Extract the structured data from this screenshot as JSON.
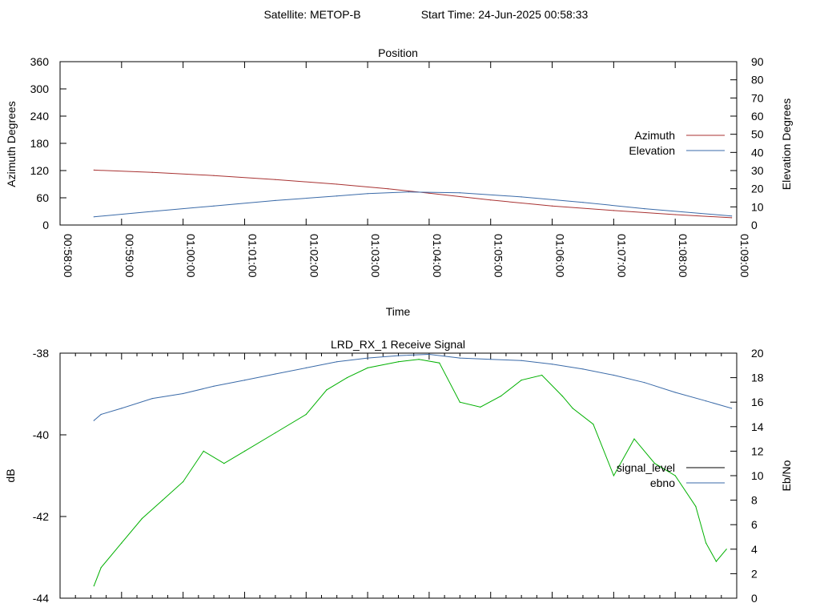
{
  "header": {
    "satellite_label": "Satellite: METOP-B",
    "start_time_label": "Start Time: 24-Jun-2025 00:58:33"
  },
  "chart_data": [
    {
      "type": "line",
      "title": "Position",
      "xlabel": "Time",
      "ylabel": "Azimuth Degrees",
      "y2label": "Elevation Degrees",
      "x_ticks": [
        "00:58:00",
        "00:59:00",
        "01:00:00",
        "01:01:00",
        "01:02:00",
        "01:03:00",
        "01:04:00",
        "01:05:00",
        "01:06:00",
        "01:07:00",
        "01:08:00",
        "01:09:00"
      ],
      "xlim": [
        "00:58:00",
        "01:09:00"
      ],
      "ylim": [
        0,
        360
      ],
      "y_ticks": [
        0,
        60,
        120,
        180,
        240,
        300,
        360
      ],
      "y2lim": [
        0,
        90
      ],
      "y2_ticks": [
        0,
        10,
        20,
        30,
        40,
        50,
        60,
        70,
        80,
        90
      ],
      "legend_position": "right",
      "series": [
        {
          "name": "Azimuth",
          "axis": "left",
          "color": "#a83232",
          "x": [
            "00:58:33",
            "00:59:30",
            "01:00:30",
            "01:01:30",
            "01:02:30",
            "01:03:20",
            "01:04:00",
            "01:05:00",
            "01:06:00",
            "01:07:00",
            "01:08:00",
            "01:08:55"
          ],
          "y": [
            121,
            116,
            109,
            100,
            90,
            80,
            70,
            55,
            42,
            32,
            23,
            16
          ]
        },
        {
          "name": "Elevation",
          "axis": "right",
          "color": "#3a6aa8",
          "x": [
            "00:58:33",
            "00:59:30",
            "01:00:30",
            "01:01:30",
            "01:02:30",
            "01:03:00",
            "01:03:40",
            "01:04:30",
            "01:05:30",
            "01:06:30",
            "01:07:30",
            "01:08:55"
          ],
          "y": [
            4.5,
            7.5,
            10.5,
            13.5,
            16,
            17.3,
            18.2,
            17.8,
            15.5,
            12.5,
            9,
            5
          ]
        }
      ]
    },
    {
      "type": "line",
      "title": "LRD_RX_1 Receive Signal",
      "xlabel": "",
      "ylabel": "dB",
      "y2label": "Eb/No",
      "x_ticks": [],
      "xlim": [
        "00:58:00",
        "01:09:00"
      ],
      "ylim": [
        -44,
        -38
      ],
      "y_ticks": [
        -44,
        -42,
        -40,
        -38
      ],
      "y2lim": [
        0,
        20
      ],
      "y2_ticks": [
        0,
        2,
        4,
        6,
        8,
        10,
        12,
        14,
        16,
        18,
        20
      ],
      "legend_position": "right",
      "series": [
        {
          "name": "signal_level",
          "axis": "left",
          "color": "#000000",
          "x": [],
          "y": []
        },
        {
          "name": "ebno",
          "axis": "right",
          "color": "#3a6aa8",
          "x": [
            "00:58:33",
            "00:58:40",
            "00:59:00",
            "00:59:30",
            "01:00:00",
            "01:00:30",
            "01:01:00",
            "01:01:30",
            "01:02:00",
            "01:02:30",
            "01:03:00",
            "01:03:30",
            "01:04:00",
            "01:04:30",
            "01:05:00",
            "01:05:30",
            "01:06:00",
            "01:06:30",
            "01:07:00",
            "01:07:30",
            "01:08:00",
            "01:08:30",
            "01:08:55"
          ],
          "y": [
            14.5,
            15,
            15.5,
            16.3,
            16.7,
            17.3,
            17.8,
            18.3,
            18.8,
            19.3,
            19.6,
            19.8,
            19.9,
            19.6,
            19.5,
            19.4,
            19.1,
            18.7,
            18.2,
            17.6,
            16.8,
            16.1,
            15.5
          ]
        },
        {
          "name": "",
          "axis": "right",
          "color": "#00b000",
          "x": [
            "00:58:33",
            "00:58:40",
            "00:59:00",
            "00:59:20",
            "00:59:40",
            "01:00:00",
            "01:00:20",
            "01:00:40",
            "01:01:00",
            "01:01:30",
            "01:02:00",
            "01:02:20",
            "01:02:40",
            "01:03:00",
            "01:03:30",
            "01:03:50",
            "01:04:10",
            "01:04:30",
            "01:04:50",
            "01:05:10",
            "01:05:30",
            "01:05:50",
            "01:06:10",
            "01:06:20",
            "01:06:40",
            "01:07:00",
            "01:07:20",
            "01:07:40",
            "01:08:00",
            "01:08:20",
            "01:08:30",
            "01:08:40",
            "01:08:50"
          ],
          "y": [
            1,
            2.5,
            4.5,
            6.5,
            8,
            9.5,
            12,
            11,
            12,
            13.5,
            15,
            17,
            18,
            18.8,
            19.3,
            19.5,
            19.2,
            16,
            15.6,
            16.5,
            17.8,
            18.2,
            16.5,
            15.5,
            14.2,
            10,
            13,
            11,
            10,
            7.5,
            4.5,
            3,
            4
          ]
        }
      ]
    }
  ]
}
